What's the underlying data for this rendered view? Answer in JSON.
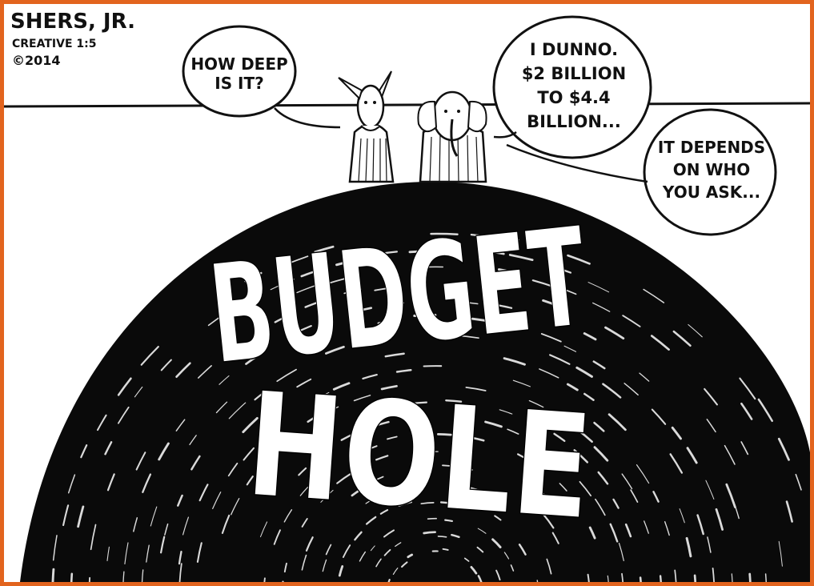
{
  "signature": {
    "name": "SHERS, JR.",
    "line2": "CREATIVE 1:5",
    "year": "©2014"
  },
  "bubbles": [
    {
      "speaker": "donkey",
      "lines": [
        "HOW DEEP",
        "IS IT?"
      ]
    },
    {
      "speaker": "elephant",
      "lines": [
        "I DUNNO.",
        "$2 BILLION",
        "TO $4.4",
        "BILLION..."
      ]
    },
    {
      "speaker": "unseen",
      "lines": [
        "IT DEPENDS",
        "ON WHO",
        "YOU ASK..."
      ]
    }
  ],
  "hole_label": {
    "line1": "BUDGET",
    "line2": "HOLE"
  },
  "colors": {
    "border": "#e2641e",
    "ink": "#111111",
    "paper": "#ffffff"
  }
}
